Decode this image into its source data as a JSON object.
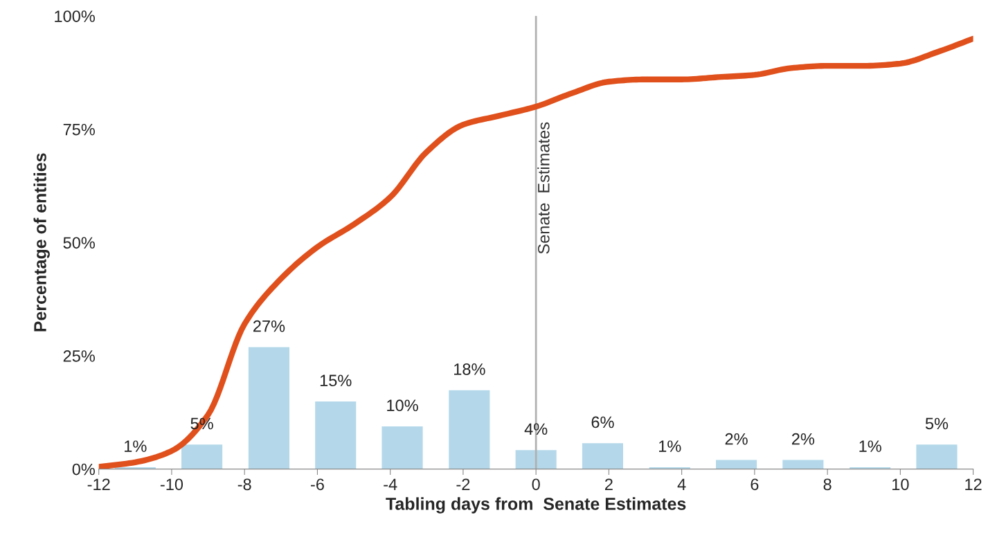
{
  "chart_data": {
    "type": "bar",
    "xlabel": "Tabling days from  Senate Estimates",
    "ylabel": "Percentage of entities",
    "xlim": [
      -12,
      12
    ],
    "xticks": [
      -12,
      -10,
      -8,
      -6,
      -4,
      -2,
      0,
      2,
      4,
      6,
      8,
      10,
      12
    ],
    "ylim": [
      0,
      100
    ],
    "yticks": [
      {
        "value": 0,
        "label": "0%"
      },
      {
        "value": 25,
        "label": "25%"
      },
      {
        "value": 50,
        "label": "50%"
      },
      {
        "value": 75,
        "label": "75%"
      },
      {
        "value": 100,
        "label": "100%"
      }
    ],
    "grid": false,
    "legend": false,
    "ref_lines": [
      {
        "axis": "x",
        "value": 0,
        "label": "Senate  Estimates",
        "color": "#b0b0b0"
      }
    ],
    "series": [
      {
        "color": "#b4d8ea",
        "x": [
          -11,
          -9.17,
          -7.33,
          -5.5,
          -3.67,
          -1.83,
          0,
          1.83,
          3.67,
          5.5,
          7.33,
          9.17,
          11
        ],
        "values": [
          0.5,
          5.5,
          27,
          15,
          9.5,
          17.5,
          4.3,
          5.8,
          0.5,
          2.1,
          2.1,
          0.5,
          5.5
        ],
        "value_labels": [
          "1%",
          "5%",
          "27%",
          "15%",
          "10%",
          "18%",
          "4%",
          "6%",
          "1%",
          "2%",
          "2%",
          "1%",
          "5%"
        ]
      },
      {
        "type": "line",
        "x": [
          -12,
          -11,
          -10,
          -9,
          -8,
          -7,
          -6,
          -5,
          -4,
          -3,
          -2,
          -1,
          0,
          1,
          2,
          3,
          4,
          5,
          6,
          7,
          8,
          9,
          10,
          11,
          12
        ],
        "values": [
          0.5,
          1.5,
          4,
          12,
          32,
          42,
          49,
          54,
          60,
          70,
          76,
          78,
          80,
          83,
          85.5,
          86,
          86,
          86.5,
          87,
          88.5,
          89,
          89,
          89.5,
          92,
          95
        ],
        "color": "#e0501c"
      }
    ]
  }
}
